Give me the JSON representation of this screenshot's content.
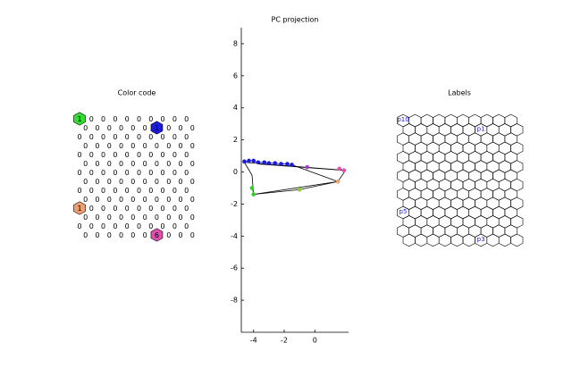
{
  "chart_data": [
    {
      "type": "hexgrid-values",
      "title": "Color code",
      "values": [
        [
          1,
          0,
          0,
          0,
          0,
          0,
          0,
          0,
          0,
          0
        ],
        [
          0,
          0,
          0,
          0,
          0,
          0,
          1,
          0,
          0,
          0
        ],
        [
          0,
          0,
          0,
          0,
          0,
          0,
          0,
          0,
          0,
          0
        ],
        [
          0,
          0,
          0,
          0,
          0,
          0,
          0,
          0,
          0,
          0
        ],
        [
          0,
          0,
          0,
          0,
          0,
          0,
          0,
          0,
          0,
          0
        ],
        [
          0,
          0,
          0,
          0,
          0,
          0,
          0,
          0,
          0,
          0
        ],
        [
          0,
          0,
          0,
          0,
          0,
          0,
          0,
          0,
          0,
          0
        ],
        [
          0,
          0,
          0,
          0,
          0,
          0,
          0,
          0,
          0,
          0
        ],
        [
          0,
          0,
          0,
          0,
          0,
          0,
          0,
          0,
          0,
          0
        ],
        [
          0,
          0,
          0,
          0,
          0,
          0,
          0,
          0,
          0,
          0
        ],
        [
          1,
          0,
          0,
          0,
          0,
          0,
          0,
          0,
          0,
          0
        ],
        [
          0,
          0,
          0,
          0,
          0,
          0,
          0,
          0,
          0,
          0
        ],
        [
          0,
          0,
          0,
          0,
          0,
          0,
          0,
          0,
          0,
          0
        ],
        [
          0,
          0,
          0,
          0,
          0,
          0,
          6,
          0,
          0,
          0
        ]
      ],
      "cell_colors": [
        {
          "row": 0,
          "col": 0,
          "color": "#33dd33"
        },
        {
          "row": 1,
          "col": 6,
          "color": "#1a1add"
        },
        {
          "row": 10,
          "col": 0,
          "color": "#f0a070"
        },
        {
          "row": 13,
          "col": 6,
          "color": "#e050b0"
        }
      ]
    },
    {
      "type": "line",
      "title": "PC projection",
      "xlim": [
        -4.8,
        2.2
      ],
      "ylim": [
        -10,
        9
      ],
      "xticks": [
        -4,
        -2,
        0
      ],
      "yticks": [
        -8,
        -6,
        -4,
        -2,
        0,
        2,
        4,
        6,
        8
      ],
      "series": [
        {
          "color": "#000000",
          "marker": false,
          "x": [
            -4.6,
            -4.1,
            -4.0,
            1.5,
            2.0,
            -4.6
          ],
          "y": [
            0.6,
            -0.2,
            -1.4,
            -0.6,
            0.1,
            0.6
          ]
        },
        {
          "color": "#000000",
          "marker": false,
          "x": [
            -4.0,
            -1.0,
            1.5
          ],
          "y": [
            -1.4,
            -1.1,
            -0.6
          ]
        },
        {
          "color": "#000000",
          "marker": false,
          "x": [
            -3.7,
            1.9
          ],
          "y": [
            0.5,
            0.1
          ]
        },
        {
          "color": "#000000",
          "marker": false,
          "x": [
            -1.5,
            1.5
          ],
          "y": [
            0.45,
            -0.6
          ]
        },
        {
          "color": "#1a1add",
          "marker": true,
          "x": [
            -4.6,
            -4.3,
            -4.0,
            -3.7,
            -3.3,
            -3.0,
            -2.6,
            -2.2,
            -1.8,
            -1.5
          ],
          "y": [
            0.65,
            0.7,
            0.7,
            0.6,
            0.6,
            0.55,
            0.55,
            0.5,
            0.5,
            0.45
          ]
        },
        {
          "color": "#33cc33",
          "marker": true,
          "x": [
            -4.1,
            -4.0
          ],
          "y": [
            -1.0,
            -1.4
          ]
        },
        {
          "color": "#88cc33",
          "marker": true,
          "x": [
            -1.0
          ],
          "y": [
            -1.1
          ]
        },
        {
          "color": "#a040c0",
          "marker": true,
          "x": [
            -0.5
          ],
          "y": [
            0.3
          ]
        },
        {
          "color": "#e050b0",
          "marker": true,
          "x": [
            1.6,
            1.9
          ],
          "y": [
            0.2,
            0.1
          ]
        },
        {
          "color": "#f0a070",
          "marker": true,
          "x": [
            1.5
          ],
          "y": [
            -0.6
          ]
        }
      ]
    },
    {
      "type": "hexgrid-labels",
      "title": "Labels",
      "rows": 14,
      "cols": 10,
      "labels": [
        {
          "row": 0,
          "col": 0,
          "text": "p10"
        },
        {
          "row": 1,
          "col": 6,
          "text": "p1"
        },
        {
          "row": 10,
          "col": 0,
          "text": "p5"
        },
        {
          "row": 13,
          "col": 6,
          "text": "p3"
        }
      ]
    }
  ]
}
